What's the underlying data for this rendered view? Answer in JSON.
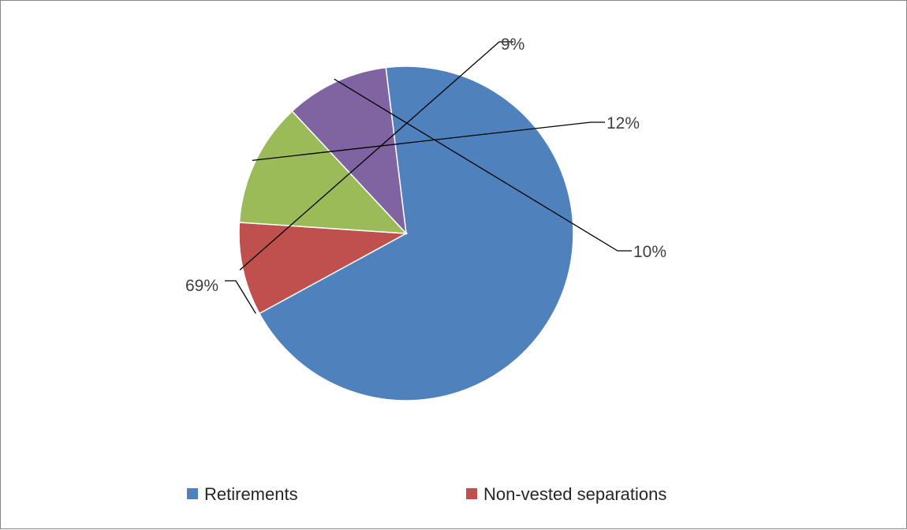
{
  "chart_data": {
    "type": "pie",
    "title": "",
    "slices": [
      {
        "name": "Retirements",
        "label": "69%",
        "value": 69,
        "color": "#4F81BD"
      },
      {
        "name": "",
        "label": "9%",
        "value": 9,
        "color": "#C0504D"
      },
      {
        "name": "",
        "label": "12%",
        "value": 12,
        "color": "#9BBB59"
      },
      {
        "name": "",
        "label": "10%",
        "value": 10,
        "color": "#8064A2"
      }
    ],
    "start_angle_deg": -7,
    "direction": "clockwise",
    "legend": {
      "position": "bottom",
      "entries": [
        {
          "label": "Retirements",
          "color": "#4F81BD"
        },
        {
          "label": "Non-vested separations",
          "color": "#C0504D"
        }
      ]
    }
  }
}
